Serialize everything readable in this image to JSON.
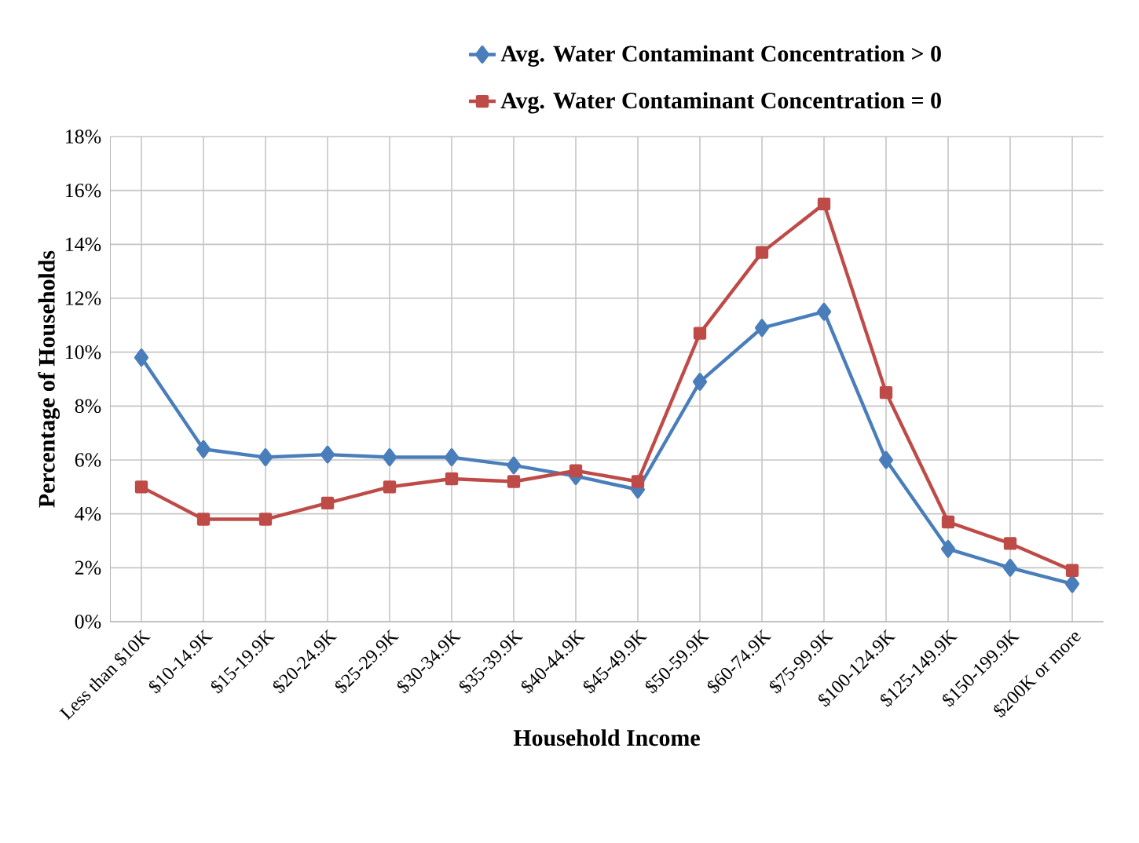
{
  "chart_data": {
    "type": "line",
    "xlabel": "Household Income",
    "ylabel": "Percentage of Households",
    "categories": [
      "Less than $10K",
      "$10-14.9K",
      "$15-19.9K",
      "$20-24.9K",
      "$25-29.9K",
      "$30-34.9K",
      "$35-39.9K",
      "$40-44.9K",
      "$45-49.9K",
      "$50-59.9K",
      "$60-74.9K",
      "$75-99.9K",
      "$100-124.9K",
      "$125-149.9K",
      "$150-199.9K",
      "$200K or more"
    ],
    "series": [
      {
        "name": "Avg. Water Contaminant Concentration > 0",
        "color": "#4a7ebb",
        "marker": "diamond",
        "values": [
          9.8,
          6.4,
          6.1,
          6.2,
          6.1,
          6.1,
          5.8,
          5.4,
          4.9,
          8.9,
          10.9,
          11.5,
          6.0,
          2.7,
          2.0,
          1.4
        ]
      },
      {
        "name": "Avg. Water Contaminant Concentration = 0",
        "color": "#be4b48",
        "marker": "square",
        "values": [
          5.0,
          3.8,
          3.8,
          4.4,
          5.0,
          5.3,
          5.2,
          5.6,
          5.2,
          10.7,
          13.7,
          15.5,
          8.5,
          3.7,
          2.9,
          1.9
        ]
      }
    ],
    "ylim": [
      0,
      18
    ],
    "yticks": [
      {
        "value": 0,
        "label": "0%"
      },
      {
        "value": 2,
        "label": "2%"
      },
      {
        "value": 4,
        "label": "4%"
      },
      {
        "value": 6,
        "label": "6%"
      },
      {
        "value": 8,
        "label": "8%"
      },
      {
        "value": 10,
        "label": "10%"
      },
      {
        "value": 12,
        "label": "12%"
      },
      {
        "value": 14,
        "label": "14%"
      },
      {
        "value": 16,
        "label": "16%"
      },
      {
        "value": 18,
        "label": "18%"
      }
    ],
    "grid": true,
    "legend": "top",
    "line_style": "solid"
  }
}
